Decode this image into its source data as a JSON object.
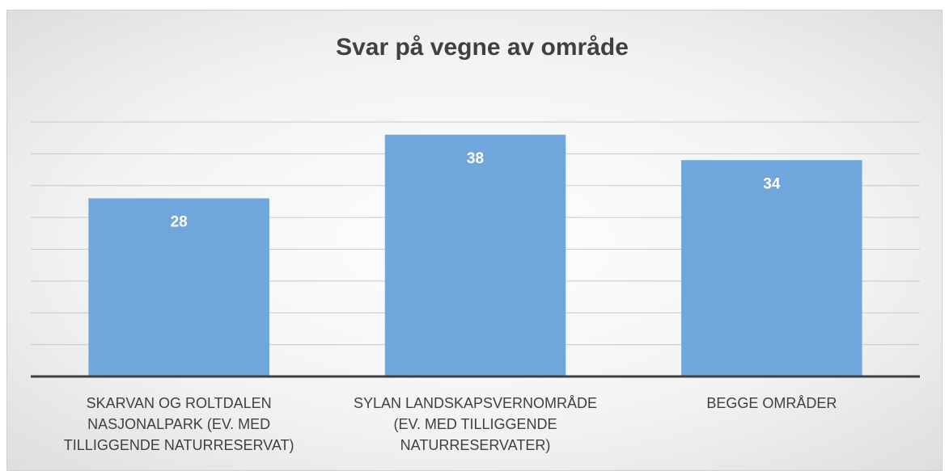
{
  "chart_data": {
    "type": "bar",
    "title": "Svar på vegne av område",
    "categories": [
      "SKARVAN OG ROLTDALEN NASJONALPARK (EV. MED TILLIGGENDE NATURRESERVAT)",
      "SYLAN LANDSKAPSVERNOMRÅDE (EV. MED TILLIGGENDE NATURRESERVATER)",
      "BEGGE OMRÅDER"
    ],
    "values": [
      28,
      38,
      34
    ],
    "color": "#6fa6db",
    "ylim": [
      0,
      40
    ],
    "yticks": [
      0,
      5,
      10,
      15,
      20,
      25,
      30,
      35,
      40
    ],
    "grid": true
  }
}
